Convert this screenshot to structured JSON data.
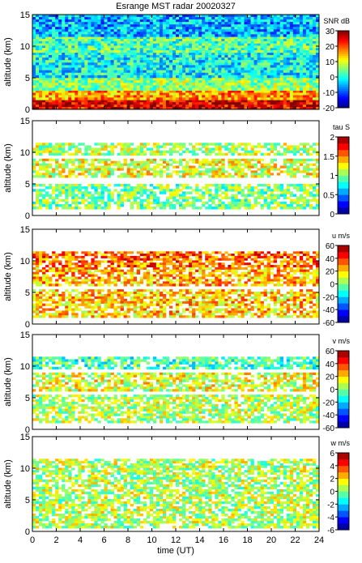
{
  "chart_data": {
    "type": "heatmap",
    "title": "Esrange MST radar 20020327",
    "xlabel": "time (UT)",
    "x_ticks": [
      0,
      2,
      4,
      6,
      8,
      10,
      12,
      14,
      16,
      18,
      20,
      22,
      24
    ],
    "xlim": [
      0,
      24
    ],
    "panels": [
      {
        "ylabel": "altitude (km)",
        "ylim": [
          0,
          15
        ],
        "y_ticks": [
          0,
          5,
          10,
          15
        ],
        "colorbar_label": "SNR dB",
        "clim": [
          -20,
          30
        ],
        "colorbar_ticks": [
          -20,
          -10,
          0,
          10,
          20,
          30
        ],
        "layers": [
          {
            "alt_range": [
              0,
              1.5
            ],
            "level": 0.9
          },
          {
            "alt_range": [
              1.5,
              3
            ],
            "level": 0.72
          },
          {
            "alt_range": [
              3,
              5
            ],
            "level": 0.52
          },
          {
            "alt_range": [
              5,
              9
            ],
            "level": 0.38
          },
          {
            "alt_range": [
              9,
              11.5
            ],
            "level": 0.45
          },
          {
            "alt_range": [
              11.5,
              15
            ],
            "level": 0.3
          }
        ]
      },
      {
        "ylabel": "altitude (km)",
        "ylim": [
          0,
          15
        ],
        "y_ticks": [
          0,
          5,
          10,
          15
        ],
        "colorbar_label": "tau S",
        "clim": [
          0,
          2
        ],
        "colorbar_ticks": [
          0,
          0.5,
          1,
          1.5,
          2
        ],
        "layers": [
          {
            "alt_range": [
              1,
              5
            ],
            "level": 0.5
          },
          {
            "alt_range": [
              6,
              9
            ],
            "level": 0.6
          },
          {
            "alt_range": [
              9.5,
              11.5
            ],
            "level": 0.55
          }
        ]
      },
      {
        "ylabel": "altitude (km)",
        "ylim": [
          0,
          15
        ],
        "y_ticks": [
          0,
          5,
          10,
          15
        ],
        "colorbar_label": "u m/s",
        "clim": [
          -60,
          60
        ],
        "colorbar_ticks": [
          -60,
          -40,
          -20,
          0,
          20,
          40,
          60
        ],
        "layers": [
          {
            "alt_range": [
              1,
              5.5
            ],
            "level": 0.67
          },
          {
            "alt_range": [
              6,
              9
            ],
            "level": 0.7
          },
          {
            "alt_range": [
              9,
              11.5
            ],
            "level": 0.78
          }
        ]
      },
      {
        "ylabel": "altitude (km)",
        "ylim": [
          0,
          15
        ],
        "y_ticks": [
          0,
          5,
          10,
          15
        ],
        "colorbar_label": "v m/s",
        "clim": [
          -60,
          60
        ],
        "colorbar_ticks": [
          -60,
          -40,
          -20,
          0,
          20,
          40,
          60
        ],
        "layers": [
          {
            "alt_range": [
              1,
              5.5
            ],
            "level": 0.55
          },
          {
            "alt_range": [
              6,
              9
            ],
            "level": 0.6
          },
          {
            "alt_range": [
              9.5,
              11.5
            ],
            "level": 0.45
          }
        ]
      },
      {
        "ylabel": "altitude (km)",
        "ylim": [
          0,
          15
        ],
        "y_ticks": [
          0,
          5,
          10,
          15
        ],
        "colorbar_label": "w m/s",
        "clim": [
          -6,
          6
        ],
        "colorbar_ticks": [
          -6,
          -4,
          -2,
          0,
          2,
          4,
          6
        ],
        "layers": [
          {
            "alt_range": [
              0.5,
              9
            ],
            "level": 0.55
          },
          {
            "alt_range": [
              9,
              11.5
            ],
            "level": 0.55
          }
        ]
      }
    ]
  }
}
